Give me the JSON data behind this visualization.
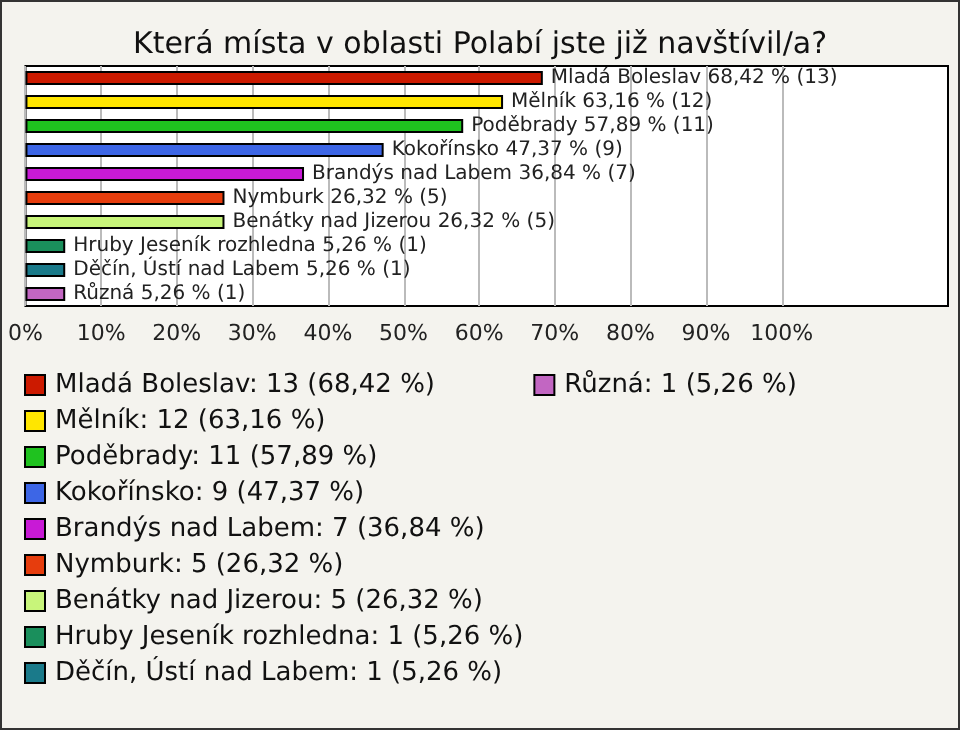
{
  "chart_data": {
    "type": "bar",
    "orientation": "horizontal",
    "title": "Která místa v oblasti Polabí jste již navštívil/a?",
    "categories": [
      null,
      null,
      null,
      null,
      null,
      null,
      null,
      null,
      null,
      null
    ],
    "series": [
      {
        "name": "Mladá Boleslav: 13 (68,42 %)",
        "color": "#cc1a00",
        "values": [
          68.42,
          null,
          null,
          null,
          null,
          null,
          null,
          null,
          null,
          null
        ],
        "value_labels": [
          "Mladá Boleslav 68,42 % (13)",
          null,
          null,
          null,
          null,
          null,
          null,
          null,
          null,
          null
        ]
      },
      {
        "name": "Mělník: 12 (63,16 %)",
        "color": "#ffe600",
        "values": [
          null,
          63.16,
          null,
          null,
          null,
          null,
          null,
          null,
          null,
          null
        ],
        "value_labels": [
          null,
          "Mělník 63,16 % (12)",
          null,
          null,
          null,
          null,
          null,
          null,
          null,
          null
        ]
      },
      {
        "name": "Poděbrady: 11 (57,89 %)",
        "color": "#1fc21f",
        "values": [
          null,
          null,
          57.89,
          null,
          null,
          null,
          null,
          null,
          null,
          null
        ],
        "value_labels": [
          null,
          null,
          "Poděbrady 57,89 % (11)",
          null,
          null,
          null,
          null,
          null,
          null,
          null
        ]
      },
      {
        "name": "Kokořínsko: 9 (47,37 %)",
        "color": "#3d66e6",
        "values": [
          null,
          null,
          null,
          47.37,
          null,
          null,
          null,
          null,
          null,
          null
        ],
        "value_labels": [
          null,
          null,
          null,
          "Kokořínsko 47,37 % (9)",
          null,
          null,
          null,
          null,
          null,
          null
        ]
      },
      {
        "name": "Brandýs nad Labem: 7 (36,84 %)",
        "color": "#c81ad6",
        "values": [
          null,
          null,
          null,
          null,
          36.84,
          null,
          null,
          null,
          null,
          null
        ],
        "value_labels": [
          null,
          null,
          null,
          null,
          "Brandýs nad Labem 36,84 % (7)",
          null,
          null,
          null,
          null,
          null
        ]
      },
      {
        "name": "Nymburk: 5 (26,32 %)",
        "color": "#e63d0d",
        "values": [
          null,
          null,
          null,
          null,
          null,
          26.32,
          null,
          null,
          null,
          null
        ],
        "value_labels": [
          null,
          null,
          null,
          null,
          null,
          "Nymburk 26,32 % (5)",
          null,
          null,
          null,
          null
        ]
      },
      {
        "name": "Benátky nad Jizerou: 5 (26,32 %)",
        "color": "#c8f57a",
        "values": [
          null,
          null,
          null,
          null,
          null,
          null,
          26.32,
          null,
          null,
          null
        ],
        "value_labels": [
          null,
          null,
          null,
          null,
          null,
          null,
          "Benátky nad Jizerou 26,32 % (5)",
          null,
          null,
          null
        ]
      },
      {
        "name": "Hruby Jeseník rozhledna: 1 (5,26 %)",
        "color": "#1a8f5c",
        "values": [
          null,
          null,
          null,
          null,
          null,
          null,
          null,
          5.26,
          null,
          null
        ],
        "value_labels": [
          null,
          null,
          null,
          null,
          null,
          null,
          null,
          "Hruby Jeseník rozhledna 5,26 % (1)",
          null,
          null
        ]
      },
      {
        "name": "Děčín, Ústí nad Labem: 1 (5,26 %)",
        "color": "#1a7a8a",
        "values": [
          null,
          null,
          null,
          null,
          null,
          null,
          null,
          null,
          5.26,
          null
        ],
        "value_labels": [
          null,
          null,
          null,
          null,
          null,
          null,
          null,
          null,
          "Děčín, Ústí nad Labem 5,26 % (1)",
          null
        ]
      },
      {
        "name": "Různá: 1 (5,26 %)",
        "color": "#c266c2",
        "values": [
          null,
          null,
          null,
          null,
          null,
          null,
          null,
          null,
          null,
          5.26
        ],
        "value_labels": [
          null,
          null,
          null,
          null,
          null,
          null,
          null,
          null,
          null,
          "Různá 5,26 % (1)"
        ]
      }
    ],
    "xlim": [
      0,
      122
    ],
    "xticks": [
      {
        "value": 0,
        "label": "0%"
      },
      {
        "value": 10,
        "label": "10%"
      },
      {
        "value": 20,
        "label": "20%"
      },
      {
        "value": 30,
        "label": "30%"
      },
      {
        "value": 40,
        "label": "40%"
      },
      {
        "value": 50,
        "label": "50%"
      },
      {
        "value": 60,
        "label": "60%"
      },
      {
        "value": 70,
        "label": "70%"
      },
      {
        "value": 80,
        "label": "80%"
      },
      {
        "value": 90,
        "label": "90%"
      },
      {
        "value": 100,
        "label": "100%"
      }
    ],
    "grid": "x",
    "legend": "bottom left",
    "tick_labels": "x"
  }
}
